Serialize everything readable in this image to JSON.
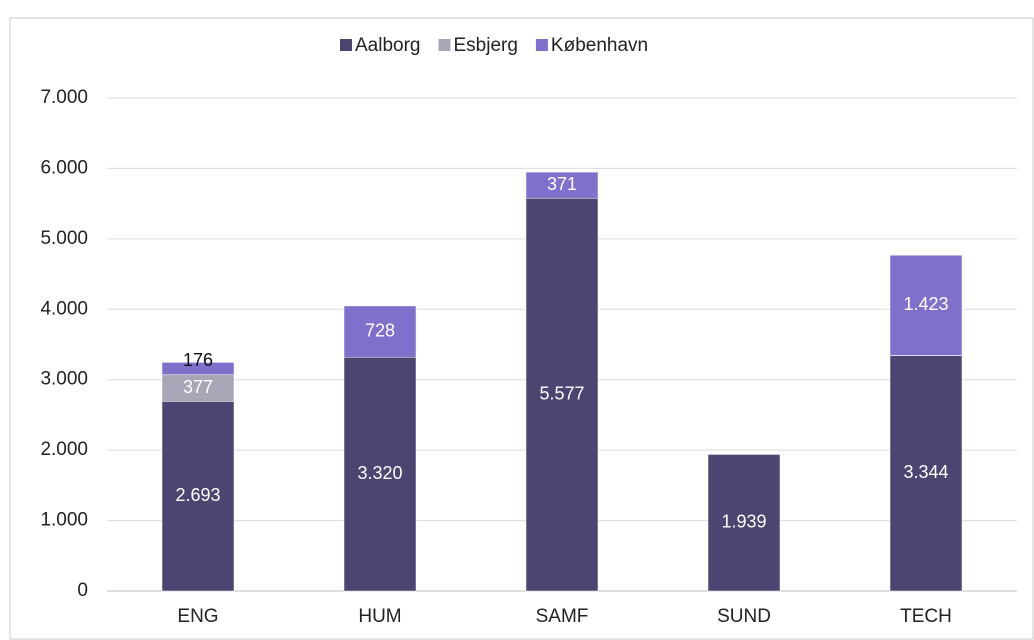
{
  "chart_data": {
    "type": "bar",
    "stacked": true,
    "categories": [
      "ENG",
      "HUM",
      "SAMF",
      "SUND",
      "TECH"
    ],
    "series": [
      {
        "name": "Aalborg",
        "color": "#4b4572",
        "values": [
          2693,
          3320,
          5577,
          1939,
          3344
        ],
        "value_labels": [
          "2.693",
          "3.320",
          "5.577",
          "1.939",
          "3.344"
        ]
      },
      {
        "name": "Esbjerg",
        "color": "#a9a6b8",
        "values": [
          377,
          null,
          null,
          null,
          1
        ]
      },
      {
        "name": "København",
        "color": "#8070cc",
        "values": [
          176,
          728,
          371,
          null,
          1423
        ],
        "value_labels": [
          "176",
          "728",
          "371",
          null,
          "1.423"
        ]
      }
    ],
    "ylim": [
      0,
      7000
    ],
    "yticks": [
      0,
      {
        "value": 1000,
        "label": "1.000"
      },
      {
        "value": 2000,
        "label": "2.000"
      },
      {
        "value": 3000,
        "label": "3.000"
      },
      {
        "value": 4000,
        "label": "4.000"
      },
      {
        "value": 5000,
        "label": "5.000"
      },
      {
        "value": 6000,
        "label": "6.000"
      },
      {
        "value": 7000,
        "label": "7.000"
      }
    ],
    "grid": true,
    "legend": "top"
  }
}
